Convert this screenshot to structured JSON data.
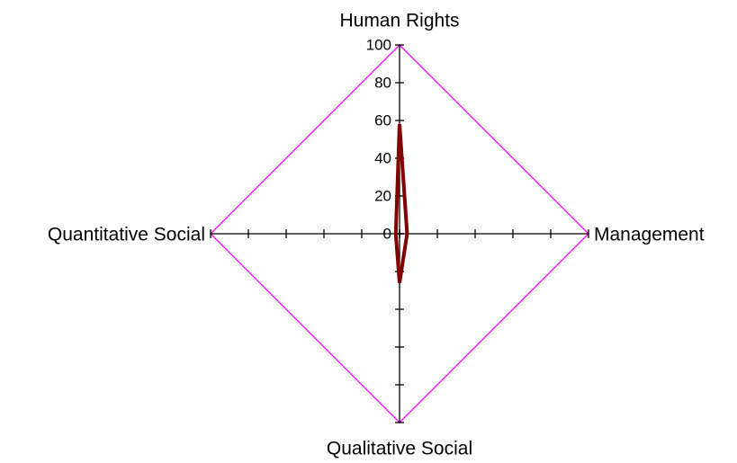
{
  "chart_data": {
    "type": "radar",
    "categories": [
      "Human Rights",
      "Management",
      "Qualitative Social",
      "Quantitative Social"
    ],
    "values": [
      58,
      4,
      26,
      2
    ],
    "color": "#800000",
    "rlim": [
      0,
      100
    ],
    "rticks": [
      0,
      20,
      40,
      60,
      80,
      100
    ],
    "grid_color": "#ff00ff"
  }
}
